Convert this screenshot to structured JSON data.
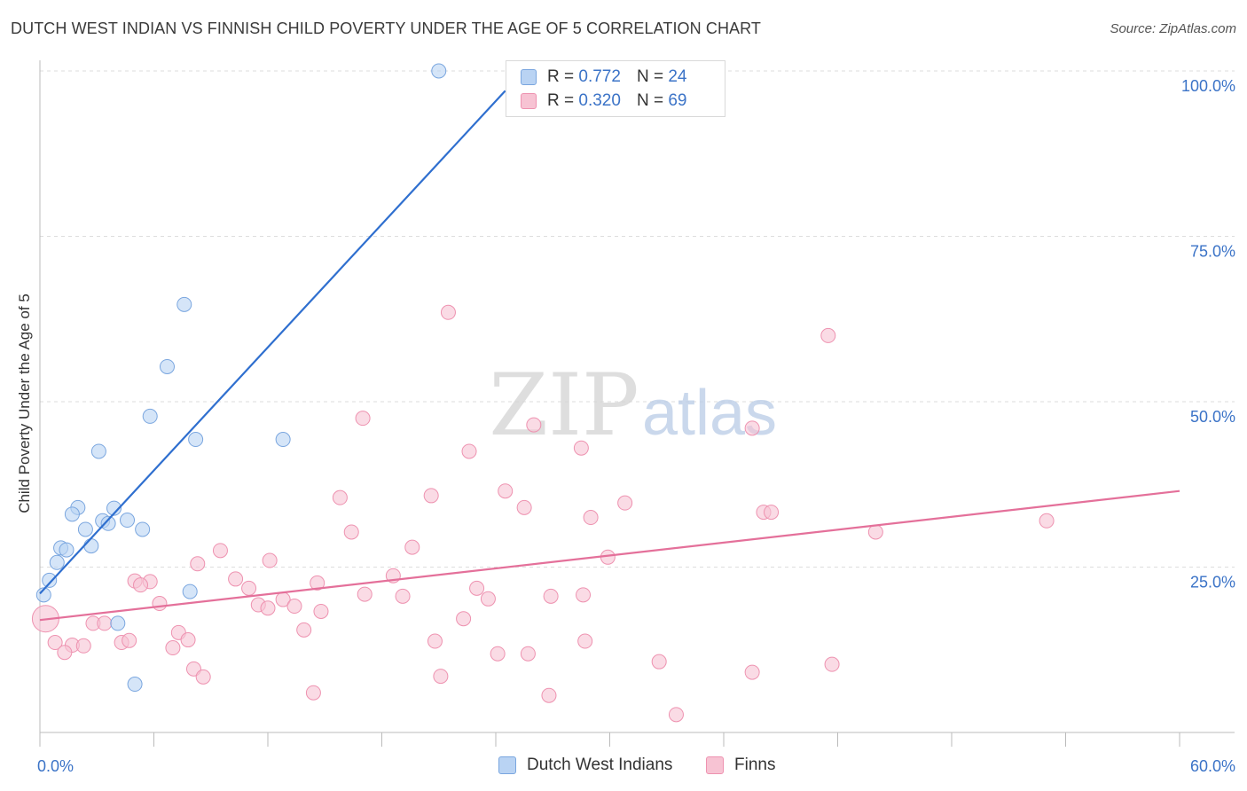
{
  "header": {
    "title": "DUTCH WEST INDIAN VS FINNISH CHILD POVERTY UNDER THE AGE OF 5 CORRELATION CHART",
    "source": "Source: ZipAtlas.com"
  },
  "watermark": {
    "zip": "ZIP",
    "atlas": "atlas"
  },
  "legend_top": {
    "rows": [
      {
        "r_label": "R =",
        "r_value": "0.772",
        "n_label": "N =",
        "n_value": "24"
      },
      {
        "r_label": "R =",
        "r_value": "0.320",
        "n_label": "N =",
        "n_value": "69"
      }
    ]
  },
  "legend_bottom": {
    "items": [
      {
        "label": "Dutch West Indians"
      },
      {
        "label": "Finns"
      }
    ]
  },
  "colors": {
    "blue_fill": "#b9d3f3",
    "blue_stroke": "#7aa6df",
    "blue_line": "#2f6fcf",
    "pink_fill": "#f7c3d3",
    "pink_stroke": "#ee92b0",
    "pink_line": "#e4709a",
    "tick_text": "#3b73c7",
    "grid": "#dddddd"
  },
  "chart_data": {
    "type": "scatter",
    "title": "DUTCH WEST INDIAN VS FINNISH CHILD POVERTY UNDER THE AGE OF 5 CORRELATION CHART",
    "ylabel": "Child Poverty Under the Age of 5",
    "xlabel": "",
    "xlim": [
      0,
      60
    ],
    "ylim": [
      0,
      100
    ],
    "x_tick_labels": [
      {
        "value": 0,
        "label": "0.0%"
      },
      {
        "value": 60,
        "label": "60.0%"
      }
    ],
    "y_tick_labels": [
      {
        "value": 25,
        "label": "25.0%"
      },
      {
        "value": 50,
        "label": "50.0%"
      },
      {
        "value": 75,
        "label": "75.0%"
      },
      {
        "value": 100,
        "label": "100.0%"
      }
    ],
    "grid": true,
    "legend_position": "top-center",
    "series": [
      {
        "name": "Dutch West Indians",
        "color": "#7aa6df",
        "points": [
          [
            21.0,
            100.0
          ],
          [
            7.6,
            64.7
          ],
          [
            6.7,
            55.3
          ],
          [
            5.8,
            47.8
          ],
          [
            8.2,
            44.3
          ],
          [
            12.8,
            44.3
          ],
          [
            3.1,
            42.5
          ],
          [
            2.0,
            34.0
          ],
          [
            3.9,
            33.9
          ],
          [
            1.7,
            33.0
          ],
          [
            3.3,
            32.0
          ],
          [
            4.6,
            32.1
          ],
          [
            3.6,
            31.6
          ],
          [
            2.4,
            30.7
          ],
          [
            5.4,
            30.7
          ],
          [
            1.1,
            27.9
          ],
          [
            1.4,
            27.6
          ],
          [
            2.7,
            28.2
          ],
          [
            0.9,
            25.7
          ],
          [
            0.5,
            23.0
          ],
          [
            0.2,
            20.8
          ],
          [
            7.9,
            21.3
          ],
          [
            4.1,
            16.5
          ],
          [
            5.0,
            7.3
          ]
        ],
        "trend": {
          "x": [
            0.0,
            24.5
          ],
          "y": [
            21.0,
            97.0
          ]
        }
      },
      {
        "name": "Finns",
        "color": "#ee92b0",
        "points": [
          [
            0.3,
            17.2
          ],
          [
            21.5,
            63.5
          ],
          [
            41.5,
            60.0
          ],
          [
            17.0,
            47.5
          ],
          [
            26.0,
            46.5
          ],
          [
            37.5,
            46.0
          ],
          [
            22.6,
            42.5
          ],
          [
            28.5,
            43.0
          ],
          [
            24.5,
            36.5
          ],
          [
            15.8,
            35.5
          ],
          [
            20.6,
            35.8
          ],
          [
            25.5,
            34.0
          ],
          [
            30.8,
            34.7
          ],
          [
            38.1,
            33.3
          ],
          [
            38.5,
            33.3
          ],
          [
            53.0,
            32.0
          ],
          [
            29.0,
            32.5
          ],
          [
            16.4,
            30.3
          ],
          [
            44.0,
            30.3
          ],
          [
            19.6,
            28.0
          ],
          [
            9.5,
            27.5
          ],
          [
            29.9,
            26.5
          ],
          [
            12.1,
            26.0
          ],
          [
            8.3,
            25.5
          ],
          [
            18.6,
            23.7
          ],
          [
            10.3,
            23.2
          ],
          [
            5.0,
            22.9
          ],
          [
            5.8,
            22.8
          ],
          [
            5.3,
            22.3
          ],
          [
            14.6,
            22.6
          ],
          [
            11.0,
            21.8
          ],
          [
            23.0,
            21.8
          ],
          [
            17.1,
            20.9
          ],
          [
            19.1,
            20.6
          ],
          [
            26.9,
            20.6
          ],
          [
            28.6,
            20.8
          ],
          [
            23.6,
            20.2
          ],
          [
            12.8,
            20.1
          ],
          [
            6.3,
            19.5
          ],
          [
            11.5,
            19.3
          ],
          [
            12.0,
            18.8
          ],
          [
            13.4,
            19.1
          ],
          [
            14.8,
            18.3
          ],
          [
            22.3,
            17.2
          ],
          [
            2.8,
            16.5
          ],
          [
            3.4,
            16.5
          ],
          [
            13.9,
            15.5
          ],
          [
            7.3,
            15.1
          ],
          [
            7.8,
            14.0
          ],
          [
            20.8,
            13.8
          ],
          [
            28.7,
            13.8
          ],
          [
            0.8,
            13.6
          ],
          [
            4.3,
            13.6
          ],
          [
            4.7,
            13.9
          ],
          [
            1.7,
            13.2
          ],
          [
            2.3,
            13.1
          ],
          [
            7.0,
            12.8
          ],
          [
            1.3,
            12.1
          ],
          [
            24.1,
            11.9
          ],
          [
            25.7,
            11.9
          ],
          [
            32.6,
            10.7
          ],
          [
            41.7,
            10.3
          ],
          [
            8.1,
            9.6
          ],
          [
            8.6,
            8.4
          ],
          [
            21.1,
            8.5
          ],
          [
            37.5,
            9.1
          ],
          [
            14.4,
            6.0
          ],
          [
            26.8,
            5.6
          ],
          [
            33.5,
            2.7
          ]
        ],
        "trend": {
          "x": [
            0.0,
            60.0
          ],
          "y": [
            17.0,
            36.5
          ]
        }
      }
    ]
  }
}
